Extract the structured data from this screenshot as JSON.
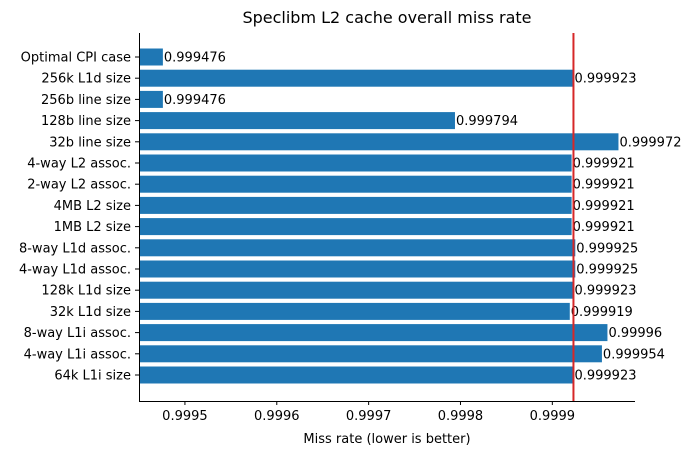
{
  "chart_data": {
    "type": "bar",
    "orientation": "horizontal",
    "title": "Speclibm L2 cache overall miss rate",
    "xlabel": "Miss rate (lower is better)",
    "ylabel": "",
    "xlim": [
      0.99945,
      0.99999
    ],
    "xticks": [
      0.9995,
      0.9996,
      0.9997,
      0.9998,
      0.9999
    ],
    "xtick_labels": [
      "0.9995",
      "0.9996",
      "0.9997",
      "0.9998",
      "0.9999"
    ],
    "categories": [
      "Optimal CPI case",
      "256k L1d size",
      "256b line size",
      "128b line size",
      "32b line size",
      "4-way L2 assoc.",
      "2-way L2 assoc.",
      "4MB L2 size",
      "1MB L2 size",
      "8-way L1d assoc.",
      "4-way L1d assoc.",
      "128k L1d size",
      "32k L1d size",
      "8-way L1i assoc.",
      "4-way L1i assoc.",
      "64k L1i size"
    ],
    "values": [
      0.999476,
      0.999923,
      0.999476,
      0.999794,
      0.999972,
      0.999921,
      0.999921,
      0.999921,
      0.999921,
      0.999925,
      0.999925,
      0.999923,
      0.999919,
      0.99996,
      0.999954,
      0.999923
    ],
    "value_labels": [
      "0.999476",
      "0.999923",
      "0.999476",
      "0.999794",
      "0.999972",
      "0.999921",
      "0.999921",
      "0.999921",
      "0.999921",
      "0.999925",
      "0.999925",
      "0.999923",
      "0.999919",
      "0.99996",
      "0.999954",
      "0.999923"
    ],
    "reference_line": {
      "x": 0.999923
    },
    "grid": false,
    "colors": {
      "bar": "#1f77b4",
      "reference_line": "#d62728",
      "axis": "#000000"
    }
  }
}
